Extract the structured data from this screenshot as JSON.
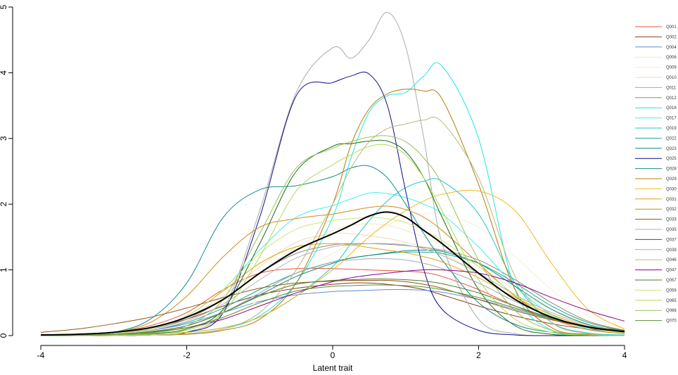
{
  "chart_data": {
    "type": "line",
    "title": "",
    "xlabel": "Latent trait",
    "ylabel": "",
    "xlim": [
      -4,
      4
    ],
    "ylim": [
      0,
      5
    ],
    "xticks": [
      -4,
      -2,
      0,
      2,
      4
    ],
    "xtick_labels": [
      "-4",
      "-2",
      "0",
      "2",
      "4"
    ],
    "yticks": [
      0,
      1,
      2,
      3,
      4,
      5
    ],
    "ytick_labels": [
      "0",
      "1",
      "2",
      "3",
      "4",
      "5"
    ],
    "grid": false,
    "legend_position": "right",
    "x": [
      -4.0,
      -3.5,
      -3.0,
      -2.5,
      -2.0,
      -1.5,
      -1.0,
      -0.5,
      0.0,
      0.25,
      0.5,
      0.75,
      1.0,
      1.25,
      1.5,
      2.0,
      2.5,
      3.0,
      3.5,
      4.0
    ],
    "series": [
      {
        "name": "Q001",
        "color": "#e8553a",
        "values": [
          0.01,
          0.02,
          0.05,
          0.15,
          0.35,
          0.7,
          0.95,
          1.02,
          1.02,
          1.01,
          1.0,
          0.99,
          0.98,
          0.96,
          0.9,
          0.7,
          0.45,
          0.25,
          0.12,
          0.05
        ]
      },
      {
        "name": "Q002",
        "color": "#8b3a2a",
        "values": [
          0.01,
          0.02,
          0.05,
          0.12,
          0.25,
          0.45,
          0.62,
          0.72,
          0.78,
          0.8,
          0.8,
          0.78,
          0.75,
          0.7,
          0.62,
          0.45,
          0.3,
          0.18,
          0.1,
          0.05
        ]
      },
      {
        "name": "Q004",
        "color": "#5b8fd6",
        "values": [
          0.0,
          0.01,
          0.03,
          0.08,
          0.18,
          0.35,
          0.52,
          0.62,
          0.67,
          0.68,
          0.69,
          0.7,
          0.7,
          0.69,
          0.66,
          0.55,
          0.4,
          0.25,
          0.13,
          0.06
        ]
      },
      {
        "name": "Q006",
        "color": "#f3e6c0",
        "values": [
          0.0,
          0.01,
          0.03,
          0.1,
          0.25,
          0.55,
          0.95,
          1.35,
          1.6,
          1.68,
          1.7,
          1.68,
          1.6,
          1.5,
          1.38,
          1.05,
          0.7,
          0.4,
          0.2,
          0.08
        ]
      },
      {
        "name": "Q009",
        "color": "#f7efcf",
        "values": [
          0.0,
          0.0,
          0.01,
          0.03,
          0.1,
          0.25,
          0.55,
          0.95,
          1.25,
          1.4,
          1.55,
          1.68,
          1.8,
          1.85,
          1.85,
          1.65,
          1.2,
          0.7,
          0.3,
          0.1
        ]
      },
      {
        "name": "Q010",
        "color": "#efdcb3",
        "values": [
          0.0,
          0.01,
          0.03,
          0.1,
          0.28,
          0.6,
          1.05,
          1.42,
          1.55,
          1.55,
          1.52,
          1.48,
          1.42,
          1.35,
          1.25,
          0.95,
          0.62,
          0.35,
          0.16,
          0.06
        ]
      },
      {
        "name": "Q011",
        "color": "#aaaaaa",
        "values": [
          0.0,
          0.0,
          0.0,
          0.01,
          0.05,
          0.4,
          1.9,
          3.7,
          4.38,
          4.22,
          4.5,
          4.92,
          4.4,
          3.0,
          1.4,
          0.25,
          0.03,
          0.0,
          0.0,
          0.0
        ]
      },
      {
        "name": "Q012",
        "color": "#8a8a7a",
        "values": [
          0.0,
          0.01,
          0.03,
          0.1,
          0.25,
          0.55,
          0.95,
          1.25,
          1.38,
          1.4,
          1.4,
          1.39,
          1.37,
          1.34,
          1.3,
          1.15,
          0.85,
          0.5,
          0.22,
          0.08
        ]
      },
      {
        "name": "Q016",
        "color": "#22e6e6",
        "values": [
          0.0,
          0.0,
          0.0,
          0.01,
          0.03,
          0.1,
          0.3,
          0.8,
          1.8,
          2.7,
          3.4,
          3.65,
          3.7,
          3.95,
          4.1,
          3.0,
          0.7,
          0.08,
          0.01,
          0.0
        ]
      },
      {
        "name": "Q017",
        "color": "#3ff0f0",
        "values": [
          0.0,
          0.01,
          0.03,
          0.1,
          0.3,
          0.7,
          1.3,
          1.8,
          1.98,
          2.08,
          2.17,
          2.16,
          2.1,
          2.0,
          1.85,
          1.35,
          0.75,
          0.32,
          0.1,
          0.03
        ]
      },
      {
        "name": "Q019",
        "color": "#1ec8c8",
        "values": [
          0.0,
          0.0,
          0.01,
          0.02,
          0.05,
          0.12,
          0.28,
          0.6,
          1.05,
          1.4,
          1.75,
          2.05,
          2.25,
          2.35,
          2.35,
          1.85,
          0.8,
          0.2,
          0.04,
          0.01
        ]
      },
      {
        "name": "Q022",
        "color": "#1aa898",
        "values": [
          0.0,
          0.01,
          0.03,
          0.08,
          0.2,
          0.42,
          0.7,
          0.95,
          1.12,
          1.18,
          1.22,
          1.25,
          1.27,
          1.27,
          1.25,
          1.1,
          0.8,
          0.45,
          0.2,
          0.07
        ]
      },
      {
        "name": "Q023",
        "color": "#128878",
        "values": [
          0.0,
          0.01,
          0.02,
          0.06,
          0.15,
          0.35,
          0.62,
          0.9,
          1.1,
          1.18,
          1.22,
          1.26,
          1.29,
          1.3,
          1.28,
          1.1,
          0.75,
          0.4,
          0.17,
          0.06
        ]
      },
      {
        "name": "Q025",
        "color": "#0c0c8a",
        "values": [
          0.0,
          0.0,
          0.0,
          0.01,
          0.05,
          0.35,
          1.8,
          3.65,
          3.85,
          3.95,
          3.98,
          3.5,
          2.2,
          1.0,
          0.4,
          0.08,
          0.01,
          0.0,
          0.0,
          0.0
        ]
      },
      {
        "name": "Q028",
        "color": "#128c8c",
        "values": [
          0.0,
          0.01,
          0.05,
          0.25,
          0.8,
          1.8,
          2.22,
          2.28,
          2.42,
          2.55,
          2.58,
          2.4,
          2.0,
          1.55,
          1.15,
          0.5,
          0.17,
          0.05,
          0.01,
          0.0
        ]
      },
      {
        "name": "Q029",
        "color": "#b07d10",
        "values": [
          0.0,
          0.0,
          0.0,
          0.01,
          0.02,
          0.08,
          0.25,
          0.8,
          2.0,
          2.9,
          3.45,
          3.68,
          3.75,
          3.72,
          3.6,
          2.3,
          0.7,
          0.12,
          0.02,
          0.0
        ]
      },
      {
        "name": "Q030",
        "color": "#f2b820",
        "values": [
          0.0,
          0.0,
          0.01,
          0.02,
          0.05,
          0.12,
          0.28,
          0.6,
          1.0,
          1.25,
          1.5,
          1.72,
          1.9,
          2.05,
          2.15,
          2.2,
          1.9,
          1.1,
          0.4,
          0.1
        ]
      },
      {
        "name": "Q031",
        "color": "#e6a010",
        "values": [
          0.0,
          0.01,
          0.03,
          0.1,
          0.3,
          0.68,
          1.1,
          1.35,
          1.4,
          1.38,
          1.34,
          1.3,
          1.26,
          1.2,
          1.12,
          0.88,
          0.58,
          0.32,
          0.14,
          0.05
        ]
      },
      {
        "name": "Q032",
        "color": "#d08a18",
        "values": [
          0.01,
          0.02,
          0.05,
          0.2,
          0.6,
          1.2,
          1.65,
          1.78,
          1.85,
          1.9,
          1.95,
          1.97,
          1.92,
          1.8,
          1.6,
          1.1,
          0.6,
          0.26,
          0.09,
          0.03
        ]
      },
      {
        "name": "Q033",
        "color": "#8a5a10",
        "values": [
          0.05,
          0.1,
          0.18,
          0.28,
          0.42,
          0.58,
          0.72,
          0.8,
          0.83,
          0.84,
          0.84,
          0.84,
          0.82,
          0.78,
          0.72,
          0.55,
          0.38,
          0.24,
          0.14,
          0.08
        ]
      },
      {
        "name": "Q035",
        "color": "#b4b4b4",
        "values": [
          0.0,
          0.01,
          0.03,
          0.08,
          0.22,
          0.48,
          0.85,
          1.18,
          1.35,
          1.38,
          1.4,
          1.4,
          1.38,
          1.32,
          1.22,
          0.95,
          0.62,
          0.35,
          0.16,
          0.06
        ]
      },
      {
        "name": "Q037",
        "color": "#1a6e14",
        "values": [
          0.0,
          0.0,
          0.01,
          0.03,
          0.1,
          0.4,
          1.4,
          2.5,
          2.88,
          2.92,
          2.96,
          2.96,
          2.8,
          2.4,
          1.8,
          0.7,
          0.15,
          0.02,
          0.0,
          0.0
        ]
      },
      {
        "name": "Q039",
        "color": "#a8a8a8",
        "values": [
          0.0,
          0.01,
          0.02,
          0.05,
          0.15,
          0.35,
          0.65,
          0.95,
          1.12,
          1.15,
          1.17,
          1.17,
          1.15,
          1.1,
          1.02,
          0.8,
          0.52,
          0.28,
          0.12,
          0.05
        ]
      },
      {
        "name": "Q046",
        "color": "#b8b880",
        "values": [
          0.0,
          0.0,
          0.0,
          0.01,
          0.03,
          0.1,
          0.35,
          1.0,
          2.0,
          2.55,
          2.95,
          3.15,
          3.22,
          3.28,
          3.25,
          2.4,
          0.9,
          0.2,
          0.03,
          0.0
        ]
      },
      {
        "name": "Q047",
        "color": "#8a008a",
        "values": [
          0.0,
          0.01,
          0.02,
          0.05,
          0.12,
          0.25,
          0.45,
          0.65,
          0.82,
          0.88,
          0.92,
          0.95,
          0.98,
          1.0,
          1.0,
          0.95,
          0.8,
          0.58,
          0.38,
          0.22
        ]
      },
      {
        "name": "Q057",
        "color": "#4e7a28",
        "values": [
          0.0,
          0.01,
          0.02,
          0.06,
          0.15,
          0.35,
          0.6,
          0.78,
          0.84,
          0.85,
          0.86,
          0.86,
          0.85,
          0.83,
          0.79,
          0.65,
          0.45,
          0.27,
          0.14,
          0.06
        ]
      },
      {
        "name": "Q059",
        "color": "#cce87a",
        "values": [
          0.0,
          0.01,
          0.03,
          0.1,
          0.3,
          0.7,
          1.25,
          1.62,
          1.75,
          1.78,
          1.8,
          1.78,
          1.72,
          1.6,
          1.45,
          1.05,
          0.62,
          0.3,
          0.12,
          0.04
        ]
      },
      {
        "name": "Q065",
        "color": "#b2dc5a",
        "values": [
          0.0,
          0.0,
          0.0,
          0.02,
          0.08,
          0.35,
          1.2,
          2.2,
          2.6,
          2.75,
          2.88,
          2.9,
          2.75,
          2.4,
          1.9,
          0.85,
          0.25,
          0.05,
          0.01,
          0.0
        ]
      },
      {
        "name": "Q066",
        "color": "#98c05a",
        "values": [
          0.0,
          0.0,
          0.01,
          0.04,
          0.15,
          0.55,
          1.55,
          2.55,
          2.85,
          2.95,
          3.02,
          3.04,
          2.95,
          2.7,
          2.3,
          1.15,
          0.38,
          0.08,
          0.01,
          0.0
        ]
      },
      {
        "name": "Q070",
        "color": "#5a8e30",
        "values": [
          0.0,
          0.01,
          0.02,
          0.05,
          0.12,
          0.28,
          0.5,
          0.68,
          0.75,
          0.76,
          0.77,
          0.77,
          0.76,
          0.74,
          0.7,
          0.58,
          0.42,
          0.26,
          0.14,
          0.06
        ]
      }
    ],
    "total": {
      "color": "#000000",
      "values": [
        0.01,
        0.02,
        0.05,
        0.12,
        0.28,
        0.55,
        0.95,
        1.3,
        1.55,
        1.68,
        1.82,
        1.88,
        1.8,
        1.6,
        1.4,
        0.95,
        0.55,
        0.28,
        0.13,
        0.06
      ]
    }
  }
}
